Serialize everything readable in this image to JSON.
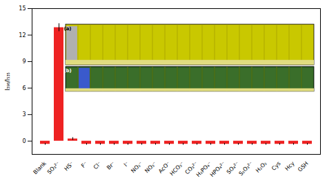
{
  "chart_data": {
    "type": "bar",
    "categories": [
      "Blank",
      "SO₃²⁻",
      "HS⁻",
      "F⁻",
      "Cl⁻",
      "Br⁻",
      "I⁻",
      "NO₂⁻",
      "NO₃⁻",
      "AcO⁻",
      "HCO₃⁻",
      "CO₃²⁻",
      "H₂PO₄⁻",
      "HPO₄²⁻",
      "SO₄²⁻",
      "S₂O₃²⁻",
      "H₂O₂",
      "Cys",
      "Hcy",
      "GSH"
    ],
    "values": [
      -0.35,
      12.85,
      0.25,
      -0.35,
      -0.35,
      -0.35,
      -0.35,
      -0.35,
      -0.35,
      -0.35,
      -0.35,
      -0.35,
      -0.35,
      -0.35,
      -0.35,
      -0.35,
      -0.35,
      -0.35,
      -0.35,
      -0.35
    ],
    "error_bars": [
      0.1,
      0.45,
      0.15,
      0.1,
      0.1,
      0.1,
      0.1,
      0.1,
      0.1,
      0.1,
      0.1,
      0.1,
      0.1,
      0.1,
      0.1,
      0.1,
      0.1,
      0.1,
      0.1,
      0.1
    ],
    "color": "#EE2222",
    "ylabel": "I₃₉₈/I₅₃₅",
    "ylim": [
      -1.5,
      15
    ],
    "yticks": [
      0,
      3,
      6,
      9,
      12,
      15
    ],
    "grid": false,
    "annotations": [
      "(a)",
      "(b)"
    ]
  }
}
